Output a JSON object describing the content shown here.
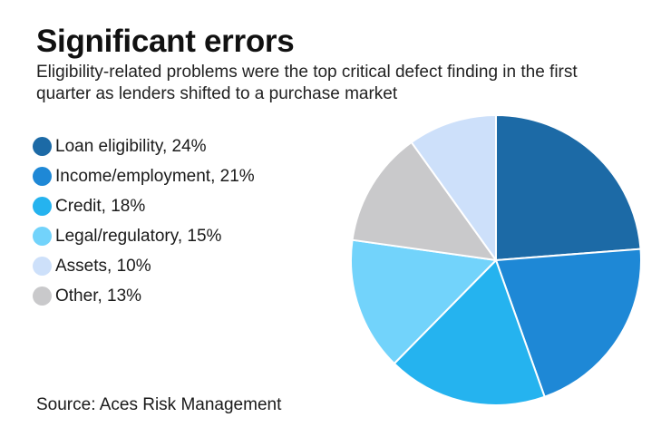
{
  "title": "Significant errors",
  "subtitle": "Eligibility-related problems were the top critical defect finding in the first quarter as lenders shifted to a purchase market",
  "source": "Source: Aces Risk Management",
  "chart_data": {
    "type": "pie",
    "title": "Significant errors",
    "subtitle": "Eligibility-related problems were the top critical defect finding in the first quarter as lenders shifted to a purchase market",
    "legend_position": "left",
    "slices": [
      {
        "label": "Loan eligibility",
        "value": 24,
        "legend": "Loan eligibility, 24%",
        "color": "#1c6aa6"
      },
      {
        "label": "Income/employment",
        "value": 21,
        "legend": "Income/employment, 21%",
        "color": "#1e88d6"
      },
      {
        "label": "Credit",
        "value": 18,
        "legend": "Credit, 18%",
        "color": "#25b3ef"
      },
      {
        "label": "Legal/regulatory",
        "value": 15,
        "legend": "Legal/regulatory, 15%",
        "color": "#72d3fb"
      },
      {
        "label": "Other",
        "value": 13,
        "legend": "Other, 13%",
        "color": "#c9c9cb"
      },
      {
        "label": "Assets",
        "value": 10,
        "legend": "Assets, 10%",
        "color": "#cde0fa"
      }
    ],
    "legend_order": [
      "Loan eligibility",
      "Income/employment",
      "Credit",
      "Legal/regulatory",
      "Assets",
      "Other"
    ]
  }
}
